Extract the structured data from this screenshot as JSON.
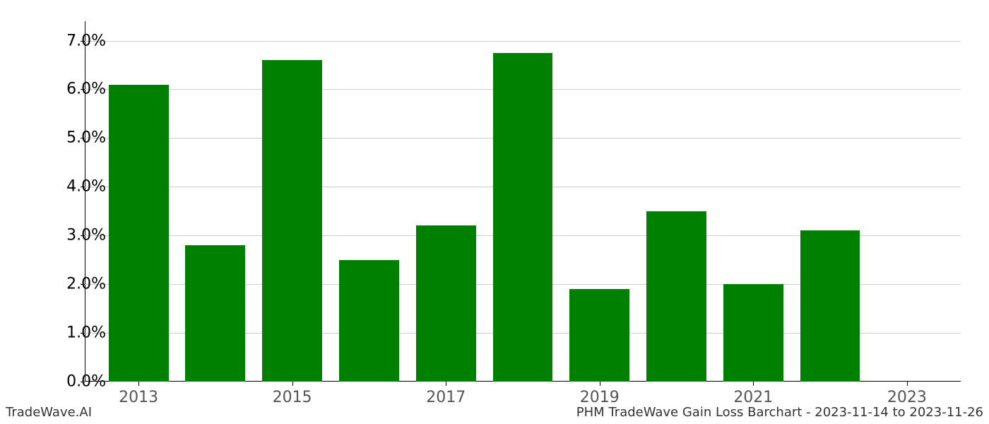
{
  "chart": {
    "type": "bar",
    "years": [
      2013,
      2014,
      2015,
      2016,
      2017,
      2018,
      2019,
      2020,
      2021,
      2022,
      2023
    ],
    "values": [
      6.1,
      2.8,
      6.6,
      2.5,
      3.2,
      6.75,
      1.9,
      3.5,
      2.0,
      3.1,
      0.0
    ],
    "bar_color": "#008000",
    "background_color": "#ffffff",
    "grid_color": "#cccccc",
    "border_color": "#000000",
    "tick_font_color": "#000000",
    "xtick_font_color": "#555555",
    "ylim_min": 0.0,
    "ylim_max": 7.4,
    "ytick_values": [
      0,
      1,
      2,
      3,
      4,
      5,
      6,
      7
    ],
    "ytick_labels": [
      "0.0%",
      "1.0%",
      "2.0%",
      "3.0%",
      "4.0%",
      "5.0%",
      "6.0%",
      "7.0%"
    ],
    "xtick_values": [
      2013,
      2015,
      2017,
      2019,
      2021,
      2023
    ],
    "xtick_labels": [
      "2013",
      "2015",
      "2017",
      "2019",
      "2021",
      "2023"
    ],
    "x_min": 2012.3,
    "x_max": 2023.7,
    "bar_width_years": 0.78,
    "label_fontsize": 22,
    "footer_fontsize": 18
  },
  "footer": {
    "left": "TradeWave.AI",
    "right": "PHM TradeWave Gain Loss Barchart - 2023-11-14 to 2023-11-26"
  }
}
